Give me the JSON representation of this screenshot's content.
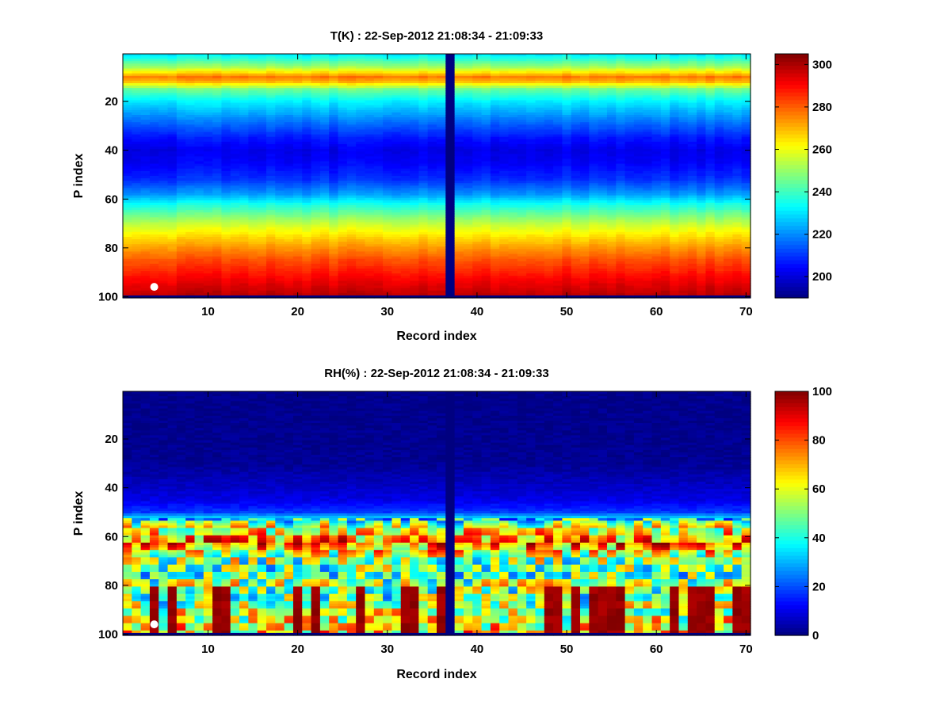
{
  "chart_data": [
    {
      "type": "heatmap",
      "title": "T(K) : 22-Sep-2012 21:08:34 - 21:09:33",
      "xlabel": "Record index",
      "ylabel": "P index",
      "x_ticks": [
        10,
        20,
        30,
        40,
        50,
        60,
        70
      ],
      "y_ticks": [
        20,
        40,
        60,
        80,
        100
      ],
      "xlim": [
        0.5,
        70.5
      ],
      "ylim": [
        0.5,
        100.5
      ],
      "y_reversed": true,
      "n_records": 70,
      "n_levels": 100,
      "colormap": "jet",
      "clim": [
        190,
        305
      ],
      "colorbar_ticks": [
        200,
        220,
        240,
        260,
        280,
        300
      ],
      "missing_record": 37,
      "missing_level": 100,
      "profile": {
        "levels": [
          1,
          6,
          10,
          12,
          15,
          20,
          28,
          35,
          40,
          45,
          52,
          58,
          62,
          66,
          70,
          75,
          80,
          85,
          90,
          95,
          99
        ],
        "values": [
          232,
          252,
          277,
          270,
          246,
          232,
          218,
          207,
          202,
          204,
          210,
          222,
          235,
          245,
          255,
          265,
          274,
          282,
          288,
          294,
          298
        ]
      },
      "marker": {
        "record": 4,
        "level": 96,
        "color": "#ffffff"
      }
    },
    {
      "type": "heatmap",
      "title": "RH(%) : 22-Sep-2012 21:08:34 - 21:09:33",
      "xlabel": "Record index",
      "ylabel": "P index",
      "x_ticks": [
        10,
        20,
        30,
        40,
        50,
        60,
        70
      ],
      "y_ticks": [
        20,
        40,
        60,
        80,
        100
      ],
      "xlim": [
        0.5,
        70.5
      ],
      "ylim": [
        0.5,
        100.5
      ],
      "y_reversed": true,
      "n_records": 70,
      "n_levels": 100,
      "colormap": "jet",
      "clim": [
        0,
        100
      ],
      "colorbar_ticks": [
        0,
        20,
        40,
        60,
        80,
        100
      ],
      "missing_record": 37,
      "missing_level": 100,
      "profile": {
        "levels": [
          1,
          30,
          38,
          45,
          50,
          53,
          56,
          60,
          63,
          68,
          72,
          76,
          80,
          85,
          90,
          95,
          99
        ],
        "values": [
          1,
          2,
          6,
          10,
          18,
          38,
          58,
          70,
          78,
          55,
          48,
          45,
          55,
          45,
          55,
          60,
          65
        ]
      },
      "marker": {
        "record": 4,
        "level": 96,
        "color": "#ffffff"
      }
    }
  ]
}
